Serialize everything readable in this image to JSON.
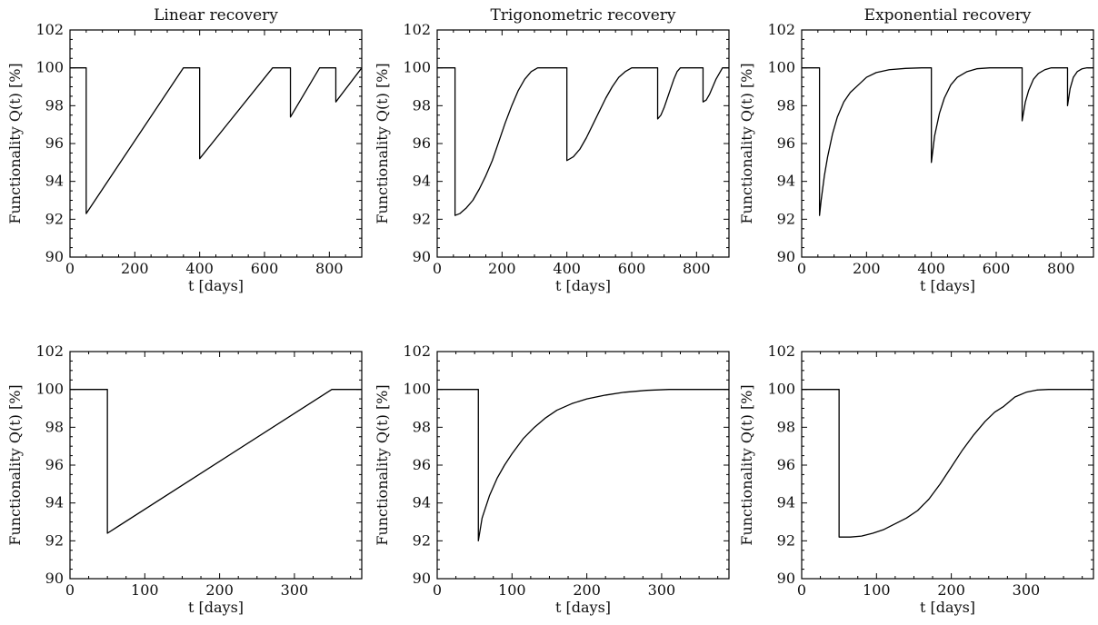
{
  "chart_data": [
    {
      "type": "line",
      "title": "Linear recovery",
      "xlabel": "t [days]",
      "ylabel": "Functionality Q(t) [%]",
      "xlim": [
        0,
        900
      ],
      "ylim": [
        90,
        102
      ],
      "xticks": [
        0,
        200,
        400,
        600,
        800
      ],
      "yticks": [
        90,
        92,
        94,
        96,
        98,
        100,
        102
      ],
      "grid": false,
      "series": [
        {
          "x": [
            0,
            50,
            50,
            350,
            400,
            400,
            625,
            680,
            680,
            770,
            820,
            820,
            900
          ],
          "y": [
            100,
            100,
            92.3,
            100,
            100,
            95.2,
            100,
            100,
            97.4,
            100,
            100,
            98.2,
            100
          ]
        }
      ]
    },
    {
      "type": "line",
      "title": "Trigonometric recovery",
      "xlabel": "t [days]",
      "ylabel": "Functionality Q(t) [%]",
      "xlim": [
        0,
        900
      ],
      "ylim": [
        90,
        102
      ],
      "xticks": [
        0,
        200,
        400,
        600,
        800
      ],
      "yticks": [
        90,
        92,
        94,
        96,
        98,
        100,
        102
      ],
      "grid": false,
      "series": [
        {
          "x": [
            0,
            55,
            55,
            70,
            90,
            110,
            130,
            150,
            170,
            190,
            210,
            230,
            250,
            270,
            290,
            310,
            330,
            355,
            400,
            400,
            420,
            440,
            460,
            480,
            500,
            520,
            540,
            560,
            580,
            600,
            620,
            680,
            680,
            690,
            700,
            710,
            720,
            730,
            740,
            750,
            760,
            770,
            820,
            820,
            830,
            840,
            850,
            860,
            870,
            880,
            890,
            900
          ],
          "y": [
            100,
            100,
            92.2,
            92.3,
            92.6,
            93.0,
            93.6,
            94.3,
            95.1,
            96.1,
            97.1,
            98.0,
            98.8,
            99.4,
            99.8,
            100,
            100,
            100,
            100,
            95.1,
            95.3,
            95.7,
            96.3,
            97.0,
            97.7,
            98.4,
            99.0,
            99.5,
            99.8,
            100,
            100,
            100,
            97.3,
            97.5,
            97.9,
            98.4,
            98.9,
            99.4,
            99.8,
            100,
            100,
            100,
            100,
            98.2,
            98.3,
            98.6,
            99.0,
            99.4,
            99.7,
            100,
            100,
            100
          ]
        }
      ]
    },
    {
      "type": "line",
      "title": "Exponential recovery",
      "xlabel": "t [days]",
      "ylabel": "Functionality Q(t) [%]",
      "xlim": [
        0,
        900
      ],
      "ylim": [
        90,
        102
      ],
      "xticks": [
        0,
        200,
        400,
        600,
        800
      ],
      "yticks": [
        90,
        92,
        94,
        96,
        98,
        100,
        102
      ],
      "grid": false,
      "series": [
        {
          "x": [
            0,
            55,
            55,
            60,
            70,
            80,
            95,
            110,
            130,
            150,
            175,
            200,
            230,
            270,
            320,
            370,
            400,
            400,
            410,
            425,
            440,
            460,
            480,
            510,
            540,
            580,
            630,
            680,
            680,
            690,
            700,
            715,
            730,
            750,
            770,
            820,
            820,
            828,
            838,
            850,
            865,
            880,
            900
          ],
          "y": [
            100,
            100,
            92.2,
            93.0,
            94.3,
            95.3,
            96.5,
            97.4,
            98.2,
            98.7,
            99.1,
            99.5,
            99.75,
            99.9,
            99.97,
            100,
            100,
            95.0,
            96.4,
            97.6,
            98.4,
            99.1,
            99.5,
            99.8,
            99.95,
            100,
            100,
            100,
            97.2,
            98.2,
            98.8,
            99.4,
            99.7,
            99.9,
            100,
            100,
            98.0,
            98.9,
            99.5,
            99.8,
            99.95,
            100,
            100
          ]
        }
      ]
    },
    {
      "type": "line",
      "title": "",
      "xlabel": "t [days]",
      "ylabel": "Functionality Q(t) [%]",
      "xlim": [
        0,
        390
      ],
      "ylim": [
        90,
        102
      ],
      "xticks": [
        0,
        100,
        200,
        300
      ],
      "yticks": [
        90,
        92,
        94,
        96,
        98,
        100,
        102
      ],
      "grid": false,
      "series": [
        {
          "x": [
            0,
            50,
            50,
            350,
            390
          ],
          "y": [
            100,
            100,
            92.4,
            100,
            100
          ]
        }
      ]
    },
    {
      "type": "line",
      "title": "",
      "xlabel": "t [days]",
      "ylabel": "Functionality Q(t) [%]",
      "xlim": [
        0,
        390
      ],
      "ylim": [
        90,
        102
      ],
      "xticks": [
        0,
        100,
        200,
        300
      ],
      "yticks": [
        90,
        92,
        94,
        96,
        98,
        100,
        102
      ],
      "grid": false,
      "series": [
        {
          "x": [
            0,
            55,
            55,
            60,
            70,
            80,
            90,
            100,
            115,
            130,
            145,
            160,
            180,
            200,
            225,
            250,
            280,
            310,
            340,
            390
          ],
          "y": [
            100,
            100,
            92.0,
            93.2,
            94.4,
            95.3,
            96.0,
            96.6,
            97.4,
            98.0,
            98.5,
            98.9,
            99.25,
            99.5,
            99.7,
            99.85,
            99.95,
            100,
            100,
            100
          ]
        }
      ]
    },
    {
      "type": "line",
      "title": "",
      "xlabel": "t [days]",
      "ylabel": "Functionality Q(t) [%]",
      "xlim": [
        0,
        390
      ],
      "ylim": [
        90,
        102
      ],
      "xticks": [
        0,
        100,
        200,
        300
      ],
      "yticks": [
        90,
        92,
        94,
        96,
        98,
        100,
        102
      ],
      "grid": false,
      "series": [
        {
          "x": [
            0,
            50,
            50,
            65,
            80,
            95,
            110,
            125,
            140,
            155,
            170,
            185,
            200,
            215,
            230,
            245,
            258,
            270,
            285,
            300,
            315,
            330,
            345,
            390
          ],
          "y": [
            100,
            100,
            92.2,
            92.2,
            92.25,
            92.4,
            92.6,
            92.9,
            93.2,
            93.6,
            94.2,
            95.0,
            95.9,
            96.8,
            97.6,
            98.3,
            98.8,
            99.1,
            99.6,
            99.85,
            99.97,
            100,
            100,
            100
          ]
        }
      ]
    }
  ]
}
